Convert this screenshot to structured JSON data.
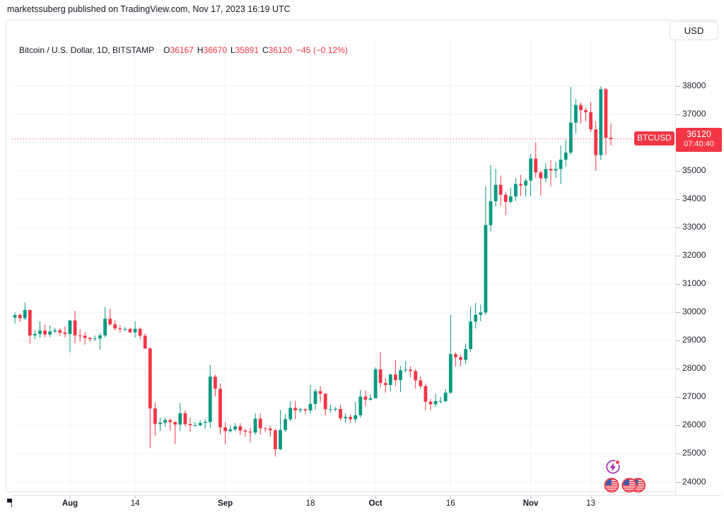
{
  "header": {
    "text": "marketssuberg published on TradingView.com, Nov 17, 2023 16:19 UTC"
  },
  "toolbar": {
    "currency_label": "USD"
  },
  "legend": {
    "symbol": "Bitcoin / U.S. Dollar, 1D, BITSTAMP",
    "open_label": "O",
    "open_value": "36167",
    "high_label": "H",
    "high_value": "36670",
    "low_label": "L",
    "low_value": "35891",
    "close_label": "C",
    "close_value": "36120",
    "change": "−45 (−0.12%)"
  },
  "price_label": {
    "symbol": "BTCUSD",
    "price": "36120",
    "countdown": "07:40:40"
  },
  "footer": {
    "brand": "TradingView"
  },
  "colors": {
    "up": "#089981",
    "down": "#f23645",
    "accent": "#f23645",
    "grid": "#f0f3fa",
    "axis_text": "#1e222d",
    "event_purple": "#9c27b0",
    "flag_blue": "#3b5aa9",
    "tick_dash": "#b2b5be"
  },
  "events": {
    "icons": [
      "flash-event-icon",
      "us-flag-event-icon",
      "us-flag-event-icon",
      "us-flag-event-icon"
    ]
  },
  "chart_data": {
    "type": "candlestick",
    "title": "Bitcoin / U.S. Dollar",
    "interval": "1D",
    "exchange": "BITSTAMP",
    "ylabel": "USD",
    "ylim": [
      23500,
      39600
    ],
    "grid": true,
    "y_ticks": [
      38000,
      37000,
      36000,
      35000,
      34000,
      33000,
      32000,
      31000,
      30000,
      29000,
      28000,
      27000,
      26000,
      25000,
      24000
    ],
    "x_ticks": [
      {
        "label": "Aug",
        "index": 13,
        "bold": true
      },
      {
        "label": "14",
        "index": 26,
        "bold": false
      },
      {
        "label": "Sep",
        "index": 44,
        "bold": true
      },
      {
        "label": "18",
        "index": 61,
        "bold": false
      },
      {
        "label": "Oct",
        "index": 74,
        "bold": true
      },
      {
        "label": "16",
        "index": 89,
        "bold": false
      },
      {
        "label": "Nov",
        "index": 105,
        "bold": true
      },
      {
        "label": "13",
        "index": 117,
        "bold": false
      }
    ],
    "last_price": 36120,
    "last_ohlc": {
      "open": 36167,
      "high": 36670,
      "low": 35891,
      "close": 36120,
      "change": -45,
      "change_pct": -0.12
    },
    "candles": [
      [
        29860,
        30180,
        29620,
        29920
      ],
      [
        29920,
        30400,
        29750,
        29810
      ],
      [
        29810,
        30000,
        29600,
        29900
      ],
      [
        29900,
        29960,
        29650,
        29790
      ],
      [
        29790,
        30340,
        29720,
        30080
      ],
      [
        30080,
        30100,
        28890,
        29180
      ],
      [
        29180,
        29370,
        29050,
        29230
      ],
      [
        29230,
        29680,
        29100,
        29350
      ],
      [
        29350,
        29560,
        29110,
        29210
      ],
      [
        29210,
        29530,
        29120,
        29320
      ],
      [
        29320,
        29450,
        29260,
        29360
      ],
      [
        29360,
        29440,
        29150,
        29280
      ],
      [
        29280,
        29500,
        29110,
        29230
      ],
      [
        29230,
        29720,
        28580,
        29710
      ],
      [
        29710,
        30050,
        28900,
        29180
      ],
      [
        29180,
        29390,
        28960,
        29170
      ],
      [
        29170,
        29300,
        28860,
        29090
      ],
      [
        29090,
        29120,
        28950,
        29050
      ],
      [
        29050,
        29180,
        28980,
        29070
      ],
      [
        29070,
        29270,
        28680,
        29180
      ],
      [
        29180,
        30180,
        29110,
        29770
      ],
      [
        29770,
        30120,
        29520,
        29570
      ],
      [
        29570,
        29710,
        29360,
        29430
      ],
      [
        29430,
        29540,
        29270,
        29400
      ],
      [
        29400,
        29470,
        29330,
        29410
      ],
      [
        29410,
        29450,
        29260,
        29290
      ],
      [
        29290,
        29680,
        29100,
        29410
      ],
      [
        29410,
        29460,
        29050,
        29170
      ],
      [
        29170,
        29240,
        28700,
        28720
      ],
      [
        28720,
        28760,
        25200,
        26600
      ],
      [
        26600,
        26820,
        25630,
        26050
      ],
      [
        26050,
        26280,
        25800,
        26100
      ],
      [
        26100,
        26270,
        25950,
        26190
      ],
      [
        26190,
        26250,
        25820,
        26120
      ],
      [
        26120,
        26140,
        25350,
        26030
      ],
      [
        26030,
        26790,
        25810,
        26430
      ],
      [
        26430,
        26540,
        25970,
        26050
      ],
      [
        26050,
        26270,
        25780,
        26010
      ],
      [
        26010,
        26120,
        25960,
        26010
      ],
      [
        26010,
        26180,
        25970,
        26090
      ],
      [
        26090,
        26220,
        25880,
        26120
      ],
      [
        26120,
        28140,
        25910,
        27720
      ],
      [
        27720,
        27790,
        27030,
        27300
      ],
      [
        27300,
        27480,
        25680,
        25930
      ],
      [
        25930,
        26120,
        25330,
        25800
      ],
      [
        25800,
        25990,
        25750,
        25860
      ],
      [
        25860,
        26090,
        25800,
        25970
      ],
      [
        25970,
        26080,
        25660,
        25820
      ],
      [
        25820,
        25870,
        25590,
        25780
      ],
      [
        25780,
        25920,
        25390,
        25750
      ],
      [
        25750,
        26420,
        25670,
        26240
      ],
      [
        26240,
        26430,
        25680,
        25900
      ],
      [
        25900,
        25940,
        25770,
        25890
      ],
      [
        25890,
        25990,
        25600,
        25830
      ],
      [
        25830,
        25880,
        24900,
        25160
      ],
      [
        25160,
        26550,
        25130,
        25840
      ],
      [
        25840,
        26400,
        25760,
        26220
      ],
      [
        26220,
        26850,
        26150,
        26620
      ],
      [
        26620,
        26870,
        26220,
        26530
      ],
      [
        26530,
        26620,
        26450,
        26570
      ],
      [
        26570,
        26620,
        26400,
        26530
      ],
      [
        26530,
        27430,
        26410,
        26760
      ],
      [
        26760,
        27300,
        26560,
        27210
      ],
      [
        27210,
        27390,
        26820,
        27120
      ],
      [
        27120,
        27150,
        26350,
        26570
      ],
      [
        26570,
        26740,
        26450,
        26580
      ],
      [
        26580,
        26650,
        26500,
        26580
      ],
      [
        26580,
        26730,
        26170,
        26250
      ],
      [
        26250,
        26430,
        26100,
        26300
      ],
      [
        26300,
        26390,
        26100,
        26220
      ],
      [
        26220,
        26830,
        26100,
        26360
      ],
      [
        26360,
        27260,
        26280,
        27020
      ],
      [
        27020,
        27230,
        26680,
        26910
      ],
      [
        26910,
        27100,
        26880,
        26960
      ],
      [
        26960,
        28050,
        26960,
        27980
      ],
      [
        27980,
        28590,
        27350,
        27500
      ],
      [
        27500,
        27670,
        27150,
        27430
      ],
      [
        27430,
        27830,
        27200,
        27800
      ],
      [
        27800,
        28300,
        27400,
        27600
      ],
      [
        27600,
        28100,
        27180,
        27950
      ],
      [
        27950,
        28280,
        27870,
        27970
      ],
      [
        27970,
        28090,
        27690,
        27920
      ],
      [
        27920,
        27990,
        27300,
        27590
      ],
      [
        27590,
        27730,
        27290,
        27390
      ],
      [
        27390,
        27480,
        26540,
        26840
      ],
      [
        26840,
        26940,
        26540,
        26750
      ],
      [
        26750,
        27120,
        26660,
        26860
      ],
      [
        26860,
        27010,
        26780,
        26860
      ],
      [
        26860,
        27290,
        26820,
        27160
      ],
      [
        27160,
        29900,
        27120,
        28520
      ],
      [
        28520,
        28590,
        28090,
        28410
      ],
      [
        28410,
        28500,
        28100,
        28320
      ],
      [
        28320,
        28900,
        28170,
        28700
      ],
      [
        28700,
        30210,
        28600,
        29670
      ],
      [
        29670,
        30330,
        29430,
        29910
      ],
      [
        29910,
        30270,
        29680,
        29990
      ],
      [
        29990,
        34450,
        29900,
        33080
      ],
      [
        33080,
        35200,
        32850,
        33920
      ],
      [
        33920,
        35060,
        33730,
        34500
      ],
      [
        34500,
        34830,
        33750,
        34150
      ],
      [
        34150,
        34250,
        33430,
        33900
      ],
      [
        33900,
        34400,
        33860,
        34090
      ],
      [
        34090,
        34740,
        33930,
        34530
      ],
      [
        34530,
        34850,
        34110,
        34480
      ],
      [
        34480,
        34720,
        34080,
        34650
      ],
      [
        34650,
        35590,
        34100,
        35430
      ],
      [
        35430,
        35990,
        34750,
        34940
      ],
      [
        34940,
        34990,
        34130,
        34730
      ],
      [
        34730,
        35280,
        34590,
        35060
      ],
      [
        35060,
        35380,
        34450,
        35010
      ],
      [
        35010,
        35310,
        34740,
        35060
      ],
      [
        35060,
        35890,
        34520,
        35390
      ],
      [
        35390,
        36090,
        35150,
        35640
      ],
      [
        35640,
        37970,
        35570,
        36700
      ],
      [
        36700,
        37530,
        36330,
        37320
      ],
      [
        37320,
        37410,
        36670,
        37140
      ],
      [
        37140,
        37220,
        36740,
        37070
      ],
      [
        37070,
        37430,
        36360,
        36460
      ],
      [
        36460,
        36750,
        35000,
        35550
      ],
      [
        35550,
        37980,
        35380,
        37880
      ],
      [
        37880,
        37930,
        35550,
        36160
      ],
      [
        36167,
        36670,
        35891,
        36120
      ]
    ]
  }
}
